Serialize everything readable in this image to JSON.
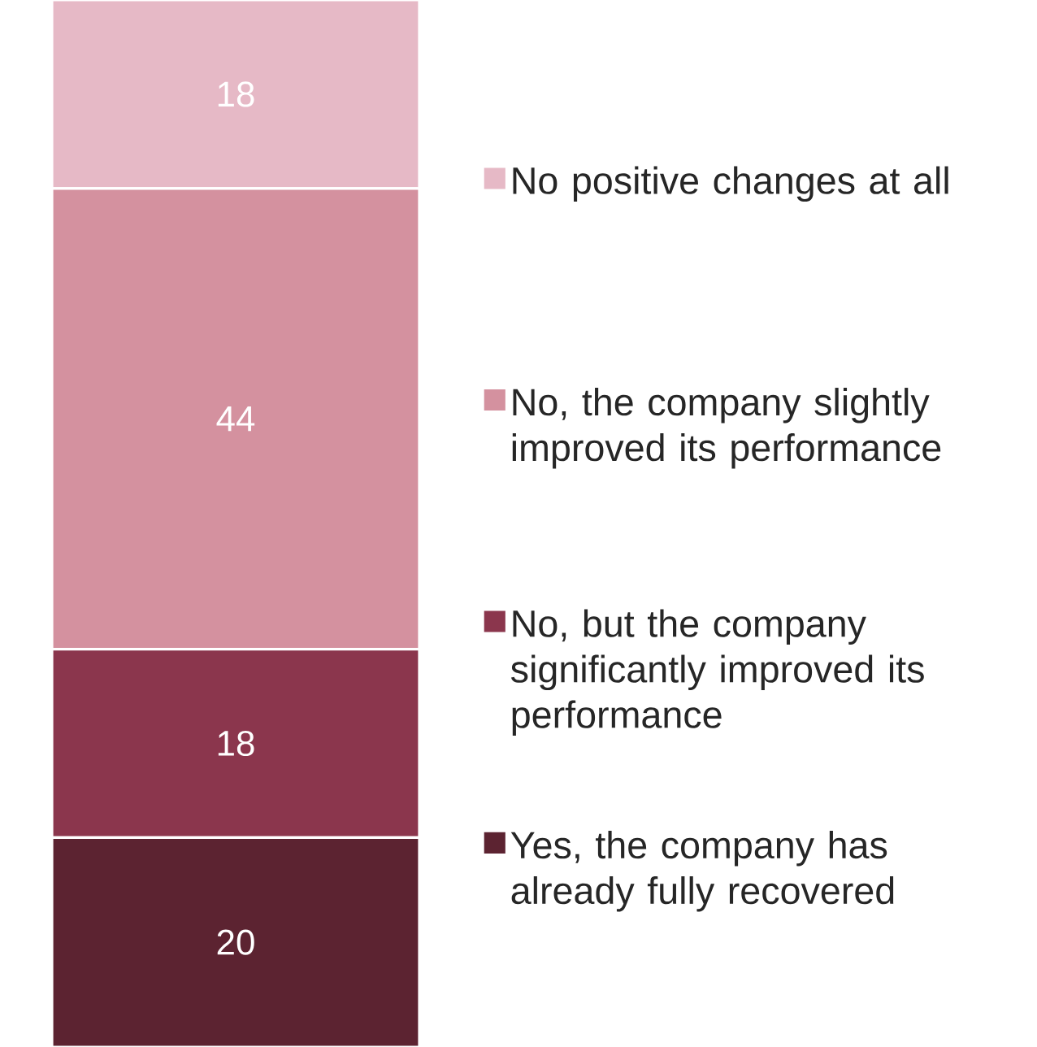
{
  "chart_data": {
    "type": "bar",
    "stacked": true,
    "categories": [
      null
    ],
    "data_labels": true,
    "legend": "right",
    "series": [
      {
        "name": "Yes, the company has already fully recovered",
        "color": "#5c2331",
        "values": [
          20
        ]
      },
      {
        "name": "No, but the company significantly improved its performance",
        "color": "#8b364d",
        "values": [
          18
        ]
      },
      {
        "name": "No, the company slightly improved its performance",
        "color": "#d4919f",
        "values": [
          44
        ]
      },
      {
        "name": "No positive changes at all",
        "color": "#e6b9c6",
        "values": [
          18
        ]
      }
    ]
  }
}
